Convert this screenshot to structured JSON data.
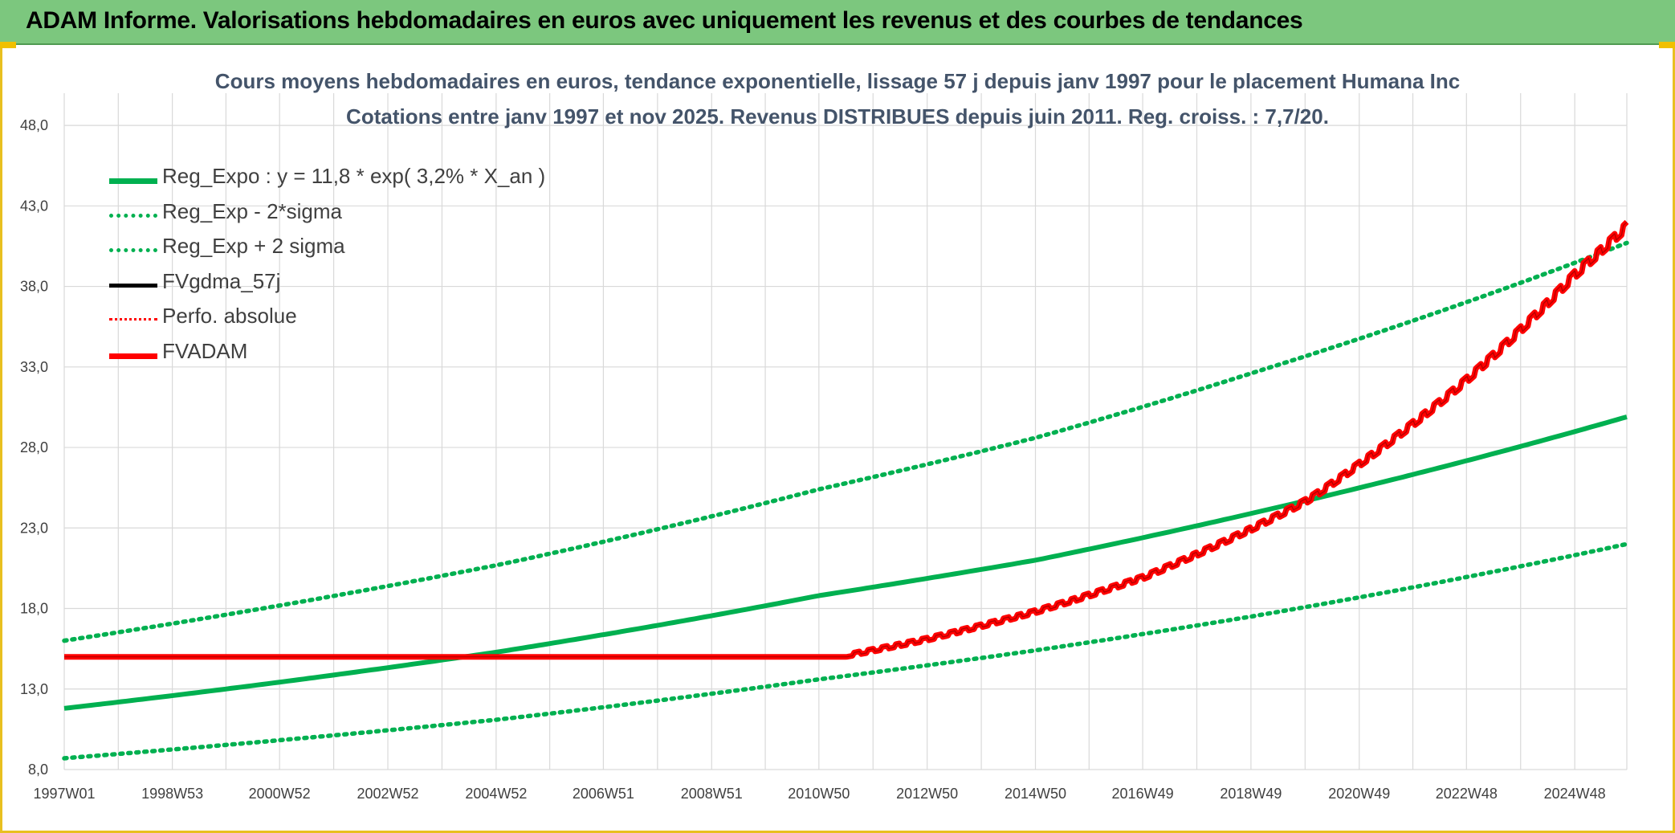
{
  "banner": {
    "title": "ADAM Informe. Valorisations hebdomadaires en euros avec uniquement les revenus et des courbes de tendances"
  },
  "chart_data": {
    "type": "line",
    "title": "Cours moyens hebdomadaires en euros, tendance exponentielle, lissage 57 j depuis janv 1997 pour le placement Humana Inc",
    "subtitle": "Cotations entre janv 1997 et nov 2025. Revenus DISTRIBUES depuis juin 2011. Reg. croiss. : 7,7/20.",
    "xlabel": "",
    "ylabel": "",
    "ylim": [
      8.0,
      50.0
    ],
    "y_ticks": [
      "8,0",
      "13,0",
      "18,0",
      "23,0",
      "28,0",
      "33,0",
      "38,0",
      "43,0",
      "48,0"
    ],
    "x_ticks": [
      "1997W01",
      "1998W53",
      "2000W52",
      "2002W52",
      "2004W52",
      "2006W51",
      "2008W51",
      "2010W50",
      "2012W50",
      "2014W50",
      "2016W49",
      "2018W49",
      "2020W49",
      "2022W48",
      "2024W48"
    ],
    "x_range": [
      "1997W01",
      "2025W46"
    ],
    "grid": true,
    "legend_position": "top-left inside",
    "series": [
      {
        "name": "Reg_Expo : y = 11,8 * exp( 3,2% *  X_an )",
        "color": "#00b050",
        "style": "solid",
        "x": [
          "1997W01",
          "2005W01",
          "2010W50",
          "2014W50",
          "2018W49",
          "2025W46"
        ],
        "values": [
          11.8,
          15.3,
          18.8,
          21.0,
          23.9,
          29.9
        ]
      },
      {
        "name": "Reg_Exp - 2*sigma",
        "color": "#00b050",
        "style": "dotted",
        "x": [
          "1997W01",
          "2005W01",
          "2010W50",
          "2014W50",
          "2018W49",
          "2025W46"
        ],
        "values": [
          8.7,
          11.1,
          13.6,
          15.4,
          17.5,
          22.0
        ]
      },
      {
        "name": "Reg_Exp + 2 sigma",
        "color": "#00b050",
        "style": "dotted",
        "x": [
          "1997W01",
          "2005W01",
          "2010W50",
          "2014W50",
          "2018W49",
          "2025W46"
        ],
        "values": [
          16.0,
          20.7,
          25.4,
          28.6,
          32.6,
          40.7
        ]
      },
      {
        "name": "FVgdma_57j",
        "color": "#000000",
        "style": "solid",
        "x": [],
        "values": []
      },
      {
        "name": "Perfo. absolue",
        "color": "#ff0000",
        "style": "dotted",
        "x": [],
        "values": []
      },
      {
        "name": "FVADAM",
        "color": "#ff0000",
        "style": "solid",
        "x": [
          "1997W01",
          "2011W25",
          "2012W50",
          "2014W50",
          "2016W49",
          "2018W49",
          "2019W52",
          "2020W49",
          "2022W48",
          "2024W48",
          "2025W46"
        ],
        "values": [
          15.0,
          15.0,
          16.0,
          17.7,
          19.8,
          22.8,
          24.6,
          26.8,
          32.0,
          38.5,
          41.5
        ]
      }
    ]
  }
}
